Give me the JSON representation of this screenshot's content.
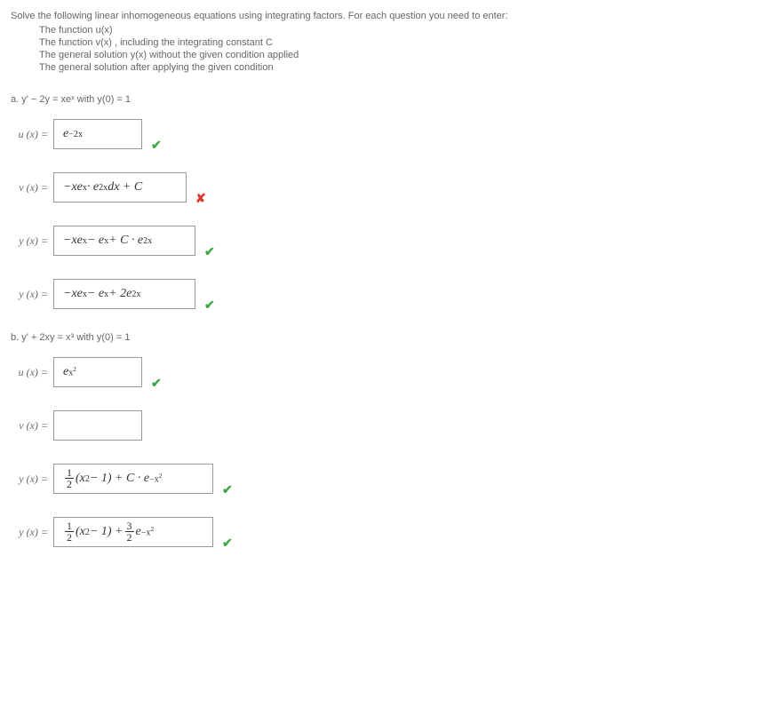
{
  "intro": {
    "lead": "Solve the following linear inhomogeneous equations using integrating factors. For each question you need to enter:",
    "items": [
      "The function  u(x)",
      "The function  v(x) ,  including the integrating constant C",
      "The general solution  y(x)  without the given condition applied",
      "The general solution after applying the given condition"
    ]
  },
  "parts": {
    "a": {
      "label": "a.  y' − 2y = xeˣ  with  y(0) = 1",
      "rows": [
        {
          "lhs": "u (x) =",
          "box_html": "e<span class='sup'>−2x</span>",
          "width": 100,
          "mark": "check"
        },
        {
          "lhs": "v (x) =",
          "box_html": "−xe<span class='sup'>x</span> · e<span class='sup'>2x</span>dx&nbsp;+ C",
          "width": 150,
          "mark": "cross"
        },
        {
          "lhs": "y (x) =",
          "box_html": "−xe<span class='sup'>x</span> − e<span class='sup'>x</span> + C · e<span class='sup'>2x</span>",
          "width": 160,
          "mark": "check"
        },
        {
          "lhs": "y (x) =",
          "box_html": "−xe<span class='sup'>x</span> − e<span class='sup'>x</span> + 2e<span class='sup'>2x</span>",
          "width": 160,
          "mark": "check"
        }
      ]
    },
    "b": {
      "label": "b.  y' + 2xy = x³  with  y(0) = 1",
      "rows": [
        {
          "lhs": "u (x) =",
          "box_html": "e<span class='sup'>x<span class='sup'>2</span></span>",
          "width": 100,
          "mark": "check"
        },
        {
          "lhs": "v (x) =",
          "box_html": "",
          "width": 100,
          "mark": ""
        },
        {
          "lhs": "y (x) =",
          "box_html": "<span class='frac'><span class='num up'>1</span><span class='den up'>2</span></span>(x<span class='sup up'>2</span> − 1) + C · e<span class='sup'>−x<span class='sup'>2</span></span>",
          "width": 180,
          "mark": "check"
        },
        {
          "lhs": "y (x) =",
          "box_html": "<span class='frac'><span class='num up'>1</span><span class='den up'>2</span></span>(x<span class='sup up'>2</span> − 1) + <span class='frac'><span class='num up'>3</span><span class='den up'>2</span></span>e<span class='sup'>−x<span class='sup'>2</span></span>",
          "width": 180,
          "mark": "check"
        }
      ]
    }
  },
  "colors": {
    "text": "#666666",
    "border": "#999999",
    "check": "#3fa64a",
    "cross": "#d9372b",
    "bg": "#ffffff"
  }
}
